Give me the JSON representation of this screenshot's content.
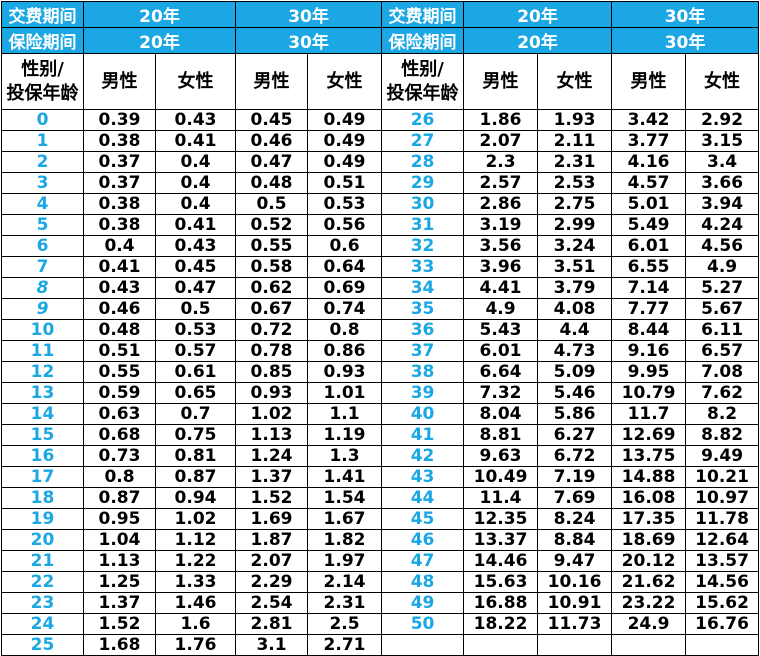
{
  "colors": {
    "header_bg": "#1aa7e4",
    "age_text": "#1aa7e4",
    "value_text": "#000000",
    "border": "#000000"
  },
  "header": {
    "pay_label": "交费期间",
    "cover_label": "保险期间",
    "term20": "20年",
    "term30": "30年",
    "gender_age_line1": "性别/",
    "gender_age_line2": "投保年龄",
    "male": "男性",
    "female": "女性"
  },
  "rows_left": [
    {
      "age": "0",
      "v": [
        "0.39",
        "0.43",
        "0.45",
        "0.49"
      ]
    },
    {
      "age": "1",
      "v": [
        "0.38",
        "0.41",
        "0.46",
        "0.49"
      ]
    },
    {
      "age": "2",
      "v": [
        "0.37",
        "0.4",
        "0.47",
        "0.49"
      ]
    },
    {
      "age": "3",
      "v": [
        "0.37",
        "0.4",
        "0.48",
        "0.51"
      ]
    },
    {
      "age": "4",
      "v": [
        "0.38",
        "0.4",
        "0.5",
        "0.53"
      ]
    },
    {
      "age": "5",
      "v": [
        "0.38",
        "0.41",
        "0.52",
        "0.56"
      ]
    },
    {
      "age": "6",
      "v": [
        "0.4",
        "0.43",
        "0.55",
        "0.6"
      ]
    },
    {
      "age": "7",
      "v": [
        "0.41",
        "0.45",
        "0.58",
        "0.64"
      ]
    },
    {
      "age": "8",
      "v": [
        "0.43",
        "0.47",
        "0.62",
        "0.69"
      ],
      "italic": true
    },
    {
      "age": "9",
      "v": [
        "0.46",
        "0.5",
        "0.67",
        "0.74"
      ],
      "italic": true
    },
    {
      "age": "10",
      "v": [
        "0.48",
        "0.53",
        "0.72",
        "0.8"
      ]
    },
    {
      "age": "11",
      "v": [
        "0.51",
        "0.57",
        "0.78",
        "0.86"
      ]
    },
    {
      "age": "12",
      "v": [
        "0.55",
        "0.61",
        "0.85",
        "0.93"
      ]
    },
    {
      "age": "13",
      "v": [
        "0.59",
        "0.65",
        "0.93",
        "1.01"
      ]
    },
    {
      "age": "14",
      "v": [
        "0.63",
        "0.7",
        "1.02",
        "1.1"
      ]
    },
    {
      "age": "15",
      "v": [
        "0.68",
        "0.75",
        "1.13",
        "1.19"
      ]
    },
    {
      "age": "16",
      "v": [
        "0.73",
        "0.81",
        "1.24",
        "1.3"
      ]
    },
    {
      "age": "17",
      "v": [
        "0.8",
        "0.87",
        "1.37",
        "1.41"
      ]
    },
    {
      "age": "18",
      "v": [
        "0.87",
        "0.94",
        "1.52",
        "1.54"
      ]
    },
    {
      "age": "19",
      "v": [
        "0.95",
        "1.02",
        "1.69",
        "1.67"
      ]
    },
    {
      "age": "20",
      "v": [
        "1.04",
        "1.12",
        "1.87",
        "1.82"
      ]
    },
    {
      "age": "21",
      "v": [
        "1.13",
        "1.22",
        "2.07",
        "1.97"
      ]
    },
    {
      "age": "22",
      "v": [
        "1.25",
        "1.33",
        "2.29",
        "2.14"
      ]
    },
    {
      "age": "23",
      "v": [
        "1.37",
        "1.46",
        "2.54",
        "2.31"
      ]
    },
    {
      "age": "24",
      "v": [
        "1.52",
        "1.6",
        "2.81",
        "2.5"
      ]
    },
    {
      "age": "25",
      "v": [
        "1.68",
        "1.76",
        "3.1",
        "2.71"
      ]
    }
  ],
  "rows_right": [
    {
      "age": "26",
      "v": [
        "1.86",
        "1.93",
        "3.42",
        "2.92"
      ]
    },
    {
      "age": "27",
      "v": [
        "2.07",
        "2.11",
        "3.77",
        "3.15"
      ]
    },
    {
      "age": "28",
      "v": [
        "2.3",
        "2.31",
        "4.16",
        "3.4"
      ]
    },
    {
      "age": "29",
      "v": [
        "2.57",
        "2.53",
        "4.57",
        "3.66"
      ]
    },
    {
      "age": "30",
      "v": [
        "2.86",
        "2.75",
        "5.01",
        "3.94"
      ]
    },
    {
      "age": "31",
      "v": [
        "3.19",
        "2.99",
        "5.49",
        "4.24"
      ]
    },
    {
      "age": "32",
      "v": [
        "3.56",
        "3.24",
        "6.01",
        "4.56"
      ]
    },
    {
      "age": "33",
      "v": [
        "3.96",
        "3.51",
        "6.55",
        "4.9"
      ]
    },
    {
      "age": "34",
      "v": [
        "4.41",
        "3.79",
        "7.14",
        "5.27"
      ]
    },
    {
      "age": "35",
      "v": [
        "4.9",
        "4.08",
        "7.77",
        "5.67"
      ]
    },
    {
      "age": "36",
      "v": [
        "5.43",
        "4.4",
        "8.44",
        "6.11"
      ]
    },
    {
      "age": "37",
      "v": [
        "6.01",
        "4.73",
        "9.16",
        "6.57"
      ]
    },
    {
      "age": "38",
      "v": [
        "6.64",
        "5.09",
        "9.95",
        "7.08"
      ]
    },
    {
      "age": "39",
      "v": [
        "7.32",
        "5.46",
        "10.79",
        "7.62"
      ]
    },
    {
      "age": "40",
      "v": [
        "8.04",
        "5.86",
        "11.7",
        "8.2"
      ]
    },
    {
      "age": "41",
      "v": [
        "8.81",
        "6.27",
        "12.69",
        "8.82"
      ]
    },
    {
      "age": "42",
      "v": [
        "9.63",
        "6.72",
        "13.75",
        "9.49"
      ]
    },
    {
      "age": "43",
      "v": [
        "10.49",
        "7.19",
        "14.88",
        "10.21"
      ]
    },
    {
      "age": "44",
      "v": [
        "11.4",
        "7.69",
        "16.08",
        "10.97"
      ]
    },
    {
      "age": "45",
      "v": [
        "12.35",
        "8.24",
        "17.35",
        "11.78"
      ]
    },
    {
      "age": "46",
      "v": [
        "13.37",
        "8.84",
        "18.69",
        "12.64"
      ]
    },
    {
      "age": "47",
      "v": [
        "14.46",
        "9.47",
        "20.12",
        "13.57"
      ]
    },
    {
      "age": "48",
      "v": [
        "15.63",
        "10.16",
        "21.62",
        "14.56"
      ]
    },
    {
      "age": "49",
      "v": [
        "16.88",
        "10.91",
        "23.22",
        "15.62"
      ]
    },
    {
      "age": "50",
      "v": [
        "18.22",
        "11.73",
        "24.9",
        "16.76"
      ]
    }
  ]
}
